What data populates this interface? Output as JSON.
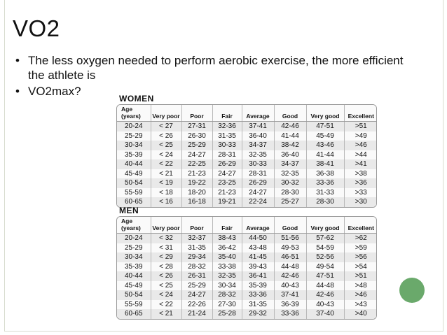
{
  "slide": {
    "title": "VO2",
    "bullet_symbol": "•",
    "bullets": [
      "The less oxygen needed to perform aerobic exercise, the more efficient the athlete is",
      "VO2max?"
    ],
    "accent_color": "#6aa96b"
  },
  "tables": {
    "headers": [
      "Age (years)",
      "Very poor",
      "Poor",
      "Fair",
      "Average",
      "Good",
      "Very good",
      "Excellent"
    ],
    "women": {
      "title": "WOMEN",
      "rows": [
        [
          "20-24",
          "< 27",
          "27-31",
          "32-36",
          "37-41",
          "42-46",
          "47-51",
          ">51"
        ],
        [
          "25-29",
          "< 26",
          "26-30",
          "31-35",
          "36-40",
          "41-44",
          "45-49",
          ">49"
        ],
        [
          "30-34",
          "< 25",
          "25-29",
          "30-33",
          "34-37",
          "38-42",
          "43-46",
          ">46"
        ],
        [
          "35-39",
          "< 24",
          "24-27",
          "28-31",
          "32-35",
          "36-40",
          "41-44",
          ">44"
        ],
        [
          "40-44",
          "< 22",
          "22-25",
          "26-29",
          "30-33",
          "34-37",
          "38-41",
          ">41"
        ],
        [
          "45-49",
          "< 21",
          "21-23",
          "24-27",
          "28-31",
          "32-35",
          "36-38",
          ">38"
        ],
        [
          "50-54",
          "< 19",
          "19-22",
          "23-25",
          "26-29",
          "30-32",
          "33-36",
          ">36"
        ],
        [
          "55-59",
          "< 18",
          "18-20",
          "21-23",
          "24-27",
          "28-30",
          "31-33",
          ">33"
        ],
        [
          "60-65",
          "< 16",
          "16-18",
          "19-21",
          "22-24",
          "25-27",
          "28-30",
          ">30"
        ]
      ]
    },
    "men": {
      "title": "MEN",
      "rows": [
        [
          "20-24",
          "< 32",
          "32-37",
          "38-43",
          "44-50",
          "51-56",
          "57-62",
          ">62"
        ],
        [
          "25-29",
          "< 31",
          "31-35",
          "36-42",
          "43-48",
          "49-53",
          "54-59",
          ">59"
        ],
        [
          "30-34",
          "< 29",
          "29-34",
          "35-40",
          "41-45",
          "46-51",
          "52-56",
          ">56"
        ],
        [
          "35-39",
          "< 28",
          "28-32",
          "33-38",
          "39-43",
          "44-48",
          "49-54",
          ">54"
        ],
        [
          "40-44",
          "< 26",
          "26-31",
          "32-35",
          "36-41",
          "42-46",
          "47-51",
          ">51"
        ],
        [
          "45-49",
          "< 25",
          "25-29",
          "30-34",
          "35-39",
          "40-43",
          "44-48",
          ">48"
        ],
        [
          "50-54",
          "< 24",
          "24-27",
          "28-32",
          "33-36",
          "37-41",
          "42-46",
          ">46"
        ],
        [
          "55-59",
          "< 22",
          "22-26",
          "27-30",
          "31-35",
          "36-39",
          "40-43",
          ">43"
        ],
        [
          "60-65",
          "< 21",
          "21-24",
          "25-28",
          "29-32",
          "33-36",
          "37-40",
          ">40"
        ]
      ]
    }
  }
}
